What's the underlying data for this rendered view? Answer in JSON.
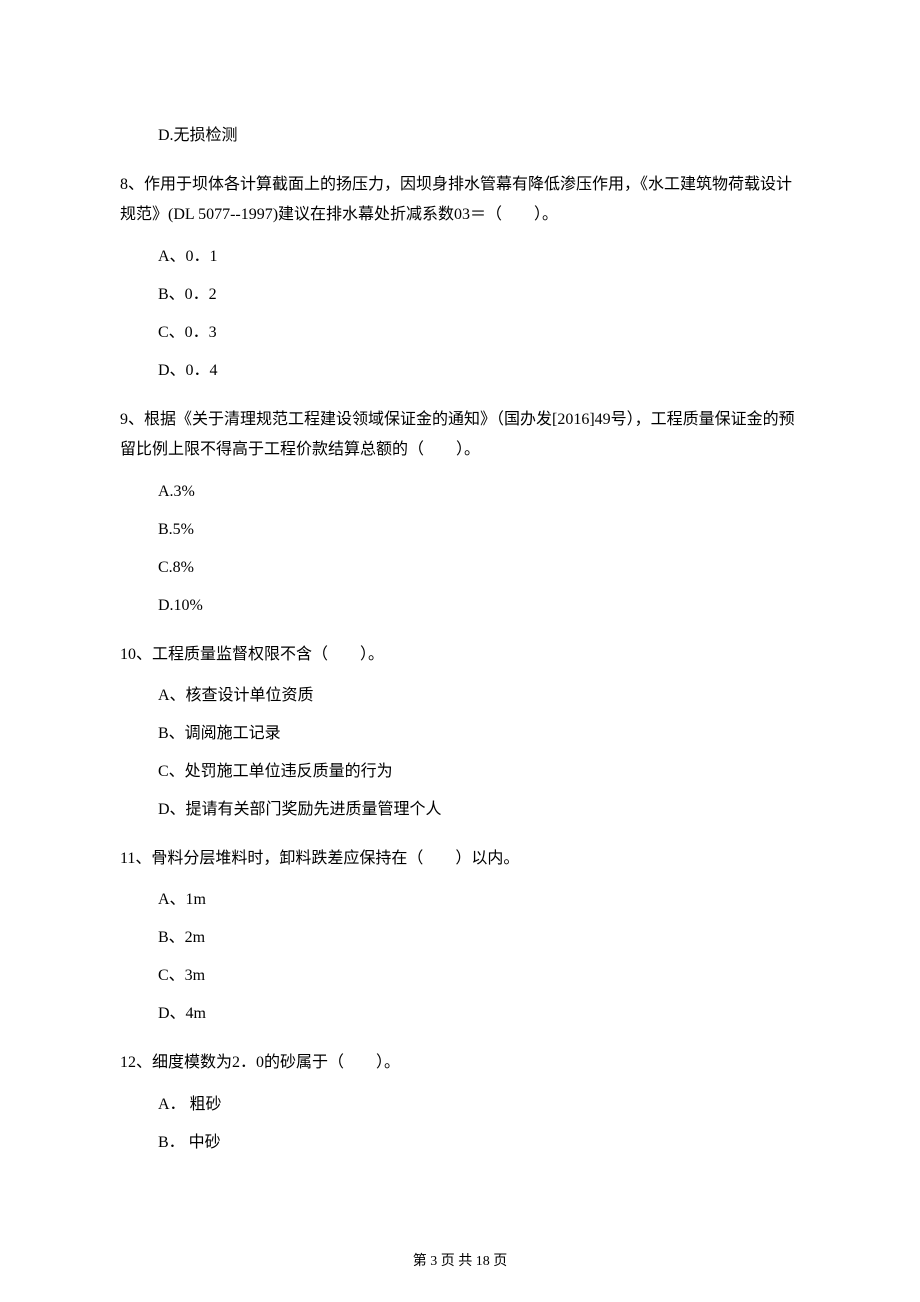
{
  "q7": {
    "options": {
      "d": "D.无损检测"
    }
  },
  "q8": {
    "stem": "8、作用于坝体各计算截面上的扬压力，因坝身排水管幕有降低渗压作用，《水工建筑物荷载设计规范》(DL 5077--1997)建议在排水幕处折减系数03＝（　　）。",
    "options": {
      "a": "A、0．1",
      "b": "B、0．2",
      "c": "C、0．3",
      "d": "D、0．4"
    }
  },
  "q9": {
    "stem": "9、根据《关于清理规范工程建设领域保证金的通知》（国办发[2016]49号），工程质量保证金的预留比例上限不得高于工程价款结算总额的（　　）。",
    "options": {
      "a": "A.3%",
      "b": "B.5%",
      "c": "C.8%",
      "d": "D.10%"
    }
  },
  "q10": {
    "stem": "10、工程质量监督权限不含（　　）。",
    "options": {
      "a": "A、核查设计单位资质",
      "b": "B、调阅施工记录",
      "c": "C、处罚施工单位违反质量的行为",
      "d": "D、提请有关部门奖励先进质量管理个人"
    }
  },
  "q11": {
    "stem": "11、骨料分层堆料时，卸料跌差应保持在（　　）以内。",
    "options": {
      "a": "A、1m",
      "b": "B、2m",
      "c": "C、3m",
      "d": "D、4m"
    }
  },
  "q12": {
    "stem": "12、细度模数为2．0的砂属于（　　）。",
    "options": {
      "a": "A． 粗砂",
      "b": "B． 中砂"
    }
  },
  "footer": "第 3 页 共 18 页"
}
